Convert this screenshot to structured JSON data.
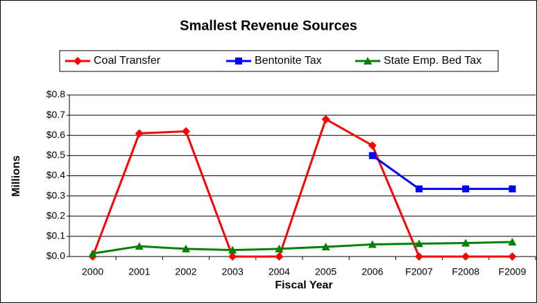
{
  "chart_data": {
    "type": "line",
    "title": "Smallest Revenue Sources",
    "x_label": "Fiscal Year",
    "y_label": "Millions",
    "categories": [
      "2000",
      "2001",
      "2002",
      "2003",
      "2004",
      "2005",
      "2006",
      "F2007",
      "F2008",
      "F2009"
    ],
    "series": [
      {
        "name": "Coal Transfer",
        "color": "#ff0000",
        "marker": "diamond",
        "values": [
          0,
          0.61,
          0.62,
          0,
          0,
          0.68,
          0.55,
          0,
          0,
          0
        ]
      },
      {
        "name": "Bentonite Tax",
        "color": "#0000ff",
        "marker": "square",
        "values": [
          null,
          null,
          null,
          null,
          null,
          null,
          0.5,
          0.335,
          0.335,
          0.335
        ]
      },
      {
        "name": "State Emp. Bed Tax",
        "color": "#008000",
        "marker": "triangle",
        "values": [
          0.015,
          0.051,
          0.038,
          0.032,
          0.038,
          0.048,
          0.06,
          0.064,
          0.067,
          0.072
        ]
      }
    ],
    "ylim": [
      0,
      0.8
    ],
    "yticks": [
      {
        "value": 0,
        "label": "$0.0"
      },
      {
        "value": 0.1,
        "label": "$0.1"
      },
      {
        "value": 0.2,
        "label": "$0.2"
      },
      {
        "value": 0.3,
        "label": "$0.3"
      },
      {
        "value": 0.4,
        "label": "$0.4"
      },
      {
        "value": 0.5,
        "label": "$0.5"
      },
      {
        "value": 0.6,
        "label": "$0.6"
      },
      {
        "value": 0.7,
        "label": "$0.7"
      },
      {
        "value": 0.8,
        "label": "$0.8"
      }
    ],
    "grid": true,
    "legend": "top"
  }
}
